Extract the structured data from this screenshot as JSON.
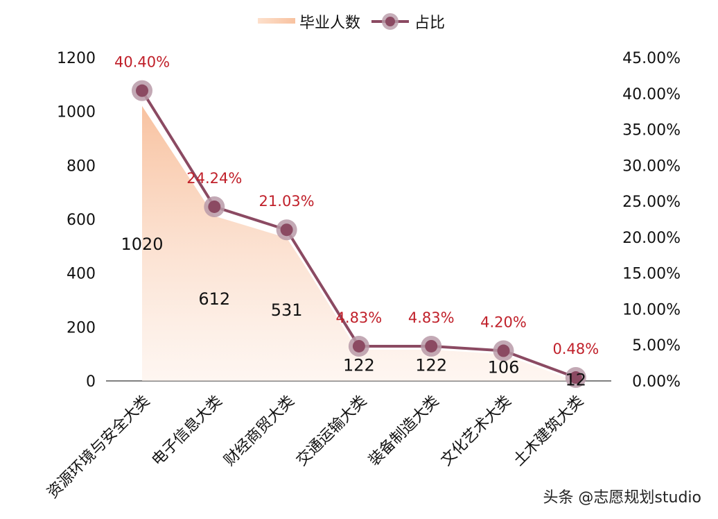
{
  "chart_data": {
    "type": "line",
    "categories": [
      "资源环境与安全大类",
      "电子信息大类",
      "财经商贸大类",
      "交通运输大类",
      "装备制造大类",
      "文化艺术大类",
      "土木建筑大类"
    ],
    "series": [
      {
        "name": "毕业人数",
        "kind": "area",
        "axis": "left",
        "values": [
          1020,
          612,
          531,
          122,
          122,
          106,
          12
        ],
        "labels": [
          "1020",
          "612",
          "531",
          "122",
          "122",
          "106",
          "12"
        ],
        "color": "#f8c7a8"
      },
      {
        "name": "占比",
        "kind": "line",
        "axis": "right",
        "values": [
          40.4,
          24.24,
          21.03,
          4.83,
          4.83,
          4.2,
          0.48
        ],
        "labels": [
          "40.40%",
          "24.24%",
          "21.03%",
          "4.83%",
          "4.83%",
          "4.20%",
          "0.48%"
        ],
        "color": "#8b4a62"
      }
    ],
    "y_left": {
      "range": [
        0,
        1200
      ],
      "ticks": [
        "0",
        "200",
        "400",
        "600",
        "800",
        "1000",
        "1200"
      ]
    },
    "y_right": {
      "range": [
        0,
        45
      ],
      "ticks": [
        "0.00%",
        "5.00%",
        "10.00%",
        "15.00%",
        "20.00%",
        "25.00%",
        "30.00%",
        "35.00%",
        "40.00%",
        "45.00%"
      ]
    },
    "legend": "top-center",
    "grid": false
  },
  "watermark": "头条 @志愿规划studio"
}
